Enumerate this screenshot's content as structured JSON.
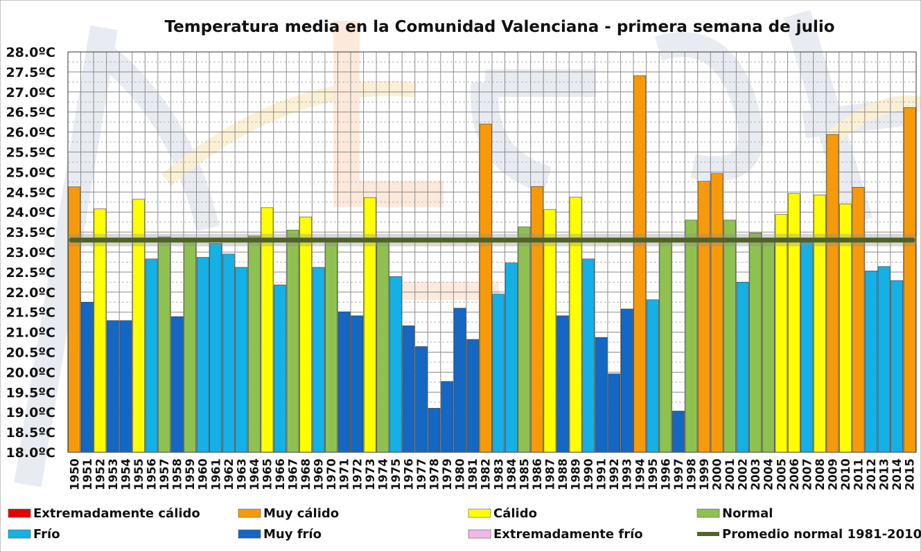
{
  "chart_data": {
    "type": "bar",
    "title": "Temperatura media en la Comunidad Valenciana - primera semana de julio",
    "xlabel": "",
    "ylabel": "",
    "ylim": [
      18.0,
      28.0
    ],
    "y_ticks": [
      "18.0ºC",
      "18.5ºC",
      "19.0ºC",
      "19.5ºC",
      "20.0ºC",
      "20.5ºC",
      "21.0ºC",
      "21.5ºC",
      "22.0ºC",
      "22.5ºC",
      "23.0ºC",
      "23.5ºC",
      "24.0ºC",
      "24.5ºC",
      "25.0ºC",
      "25.5ºC",
      "26.0ºC",
      "26.5ºC",
      "27.0ºC",
      "27.5ºC",
      "28.0ºC"
    ],
    "grid": true,
    "legend_position": "bottom",
    "categories": [
      "1950",
      "1951",
      "1952",
      "1953",
      "1954",
      "1955",
      "1956",
      "1957",
      "1958",
      "1959",
      "1960",
      "1961",
      "1962",
      "1963",
      "1964",
      "1965",
      "1966",
      "1967",
      "1968",
      "1969",
      "1970",
      "1971",
      "1972",
      "1973",
      "1974",
      "1975",
      "1976",
      "1977",
      "1978",
      "1979",
      "1980",
      "1981",
      "1982",
      "1983",
      "1984",
      "1985",
      "1986",
      "1987",
      "1988",
      "1989",
      "1990",
      "1991",
      "1992",
      "1993",
      "1994",
      "1995",
      "1996",
      "1997",
      "1998",
      "1999",
      "2000",
      "2001",
      "2002",
      "2003",
      "2004",
      "2005",
      "2006",
      "2007",
      "2008",
      "2009",
      "2010",
      "2011",
      "2012",
      "2013",
      "2014",
      "2015"
    ],
    "values": [
      24.63,
      21.75,
      24.08,
      21.29,
      21.29,
      24.32,
      22.83,
      23.38,
      21.39,
      23.3,
      22.87,
      23.22,
      22.95,
      22.62,
      23.4,
      24.11,
      22.18,
      23.55,
      23.88,
      22.62,
      23.3,
      21.51,
      21.41,
      24.36,
      23.3,
      22.39,
      21.16,
      20.64,
      19.1,
      19.77,
      21.6,
      20.82,
      26.2,
      21.95,
      22.73,
      23.63,
      24.64,
      24.06,
      21.41,
      24.37,
      22.83,
      20.87,
      19.96,
      21.58,
      27.41,
      21.81,
      23.3,
      19.03,
      23.8,
      24.77,
      24.96,
      23.8,
      22.25,
      23.48,
      23.3,
      23.94,
      24.46,
      23.3,
      24.43,
      25.94,
      24.2,
      24.62,
      22.53,
      22.64,
      22.29,
      26.61
    ],
    "classes": [
      "muy_calido",
      "muy_frio",
      "calido",
      "muy_frio",
      "muy_frio",
      "calido",
      "frio",
      "normal",
      "muy_frio",
      "normal",
      "frio",
      "frio",
      "frio",
      "frio",
      "normal",
      "calido",
      "frio",
      "normal",
      "calido",
      "frio",
      "normal",
      "muy_frio",
      "muy_frio",
      "calido",
      "normal",
      "frio",
      "muy_frio",
      "muy_frio",
      "muy_frio",
      "muy_frio",
      "muy_frio",
      "muy_frio",
      "muy_calido",
      "frio",
      "frio",
      "normal",
      "muy_calido",
      "calido",
      "muy_frio",
      "calido",
      "frio",
      "muy_frio",
      "muy_frio",
      "muy_frio",
      "muy_calido",
      "frio",
      "normal",
      "muy_frio",
      "normal",
      "muy_calido",
      "muy_calido",
      "normal",
      "frio",
      "normal",
      "normal",
      "calido",
      "calido",
      "frio",
      "calido",
      "muy_calido",
      "calido",
      "muy_calido",
      "frio",
      "frio",
      "frio",
      "muy_calido"
    ],
    "reference_line": {
      "value": 23.3,
      "color": "#4f6228"
    },
    "legend": [
      {
        "key": "extremadamente_calido",
        "label": "Extremadamente cálido",
        "color": "#e60000",
        "type": "box"
      },
      {
        "key": "muy_calido",
        "label": "Muy cálido",
        "color": "#f79a09",
        "type": "box"
      },
      {
        "key": "calido",
        "label": "Cálido",
        "color": "#ffff00",
        "type": "box"
      },
      {
        "key": "normal",
        "label": "Normal",
        "color": "#8fc150",
        "type": "box"
      },
      {
        "key": "frio",
        "label": "Frío",
        "color": "#15b0e6",
        "type": "box"
      },
      {
        "key": "muy_frio",
        "label": "Muy frío",
        "color": "#1467c2",
        "type": "box"
      },
      {
        "key": "extremadamente_frio",
        "label": "Extremadamente frío",
        "color": "#f4b8e8",
        "type": "box"
      },
      {
        "key": "promedio",
        "label": "Promedio normal 1981-2010",
        "color": "#4f6228",
        "type": "line"
      }
    ]
  }
}
